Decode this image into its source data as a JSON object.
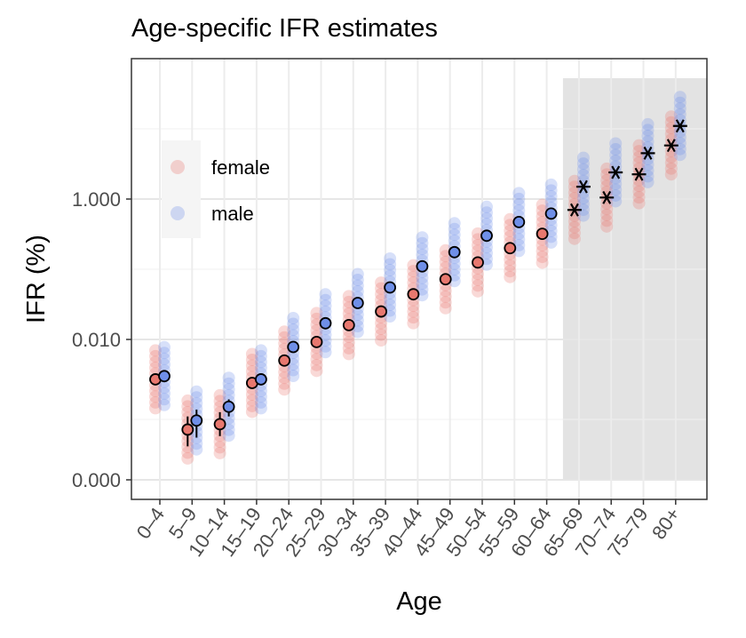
{
  "chart_data": {
    "type": "scatter",
    "title": "Age-specific IFR estimates",
    "xlabel": "Age",
    "ylabel": "IFR (%)",
    "y_scale": "log",
    "y_ticks": [
      "0.000",
      "0.010",
      "1.000"
    ],
    "categories": [
      "0–4",
      "5–9",
      "10–14",
      "15–19",
      "20–24",
      "25–29",
      "30–34",
      "35–39",
      "40–44",
      "45–49",
      "50–54",
      "55–59",
      "60–64",
      "65–69",
      "70–74",
      "75–79",
      "80+"
    ],
    "legend": {
      "position": "top-left",
      "entries": [
        "female",
        "male"
      ]
    },
    "shaded_region_from": "65–69",
    "grid": true,
    "series": [
      {
        "name": "female",
        "color": "#e8786f",
        "point_estimates": [
          0.0027,
          0.00052,
          0.00062,
          0.0024,
          0.005,
          0.0092,
          0.016,
          0.025,
          0.044,
          0.072,
          0.125,
          0.2,
          0.32,
          0.7,
          1.05,
          2.25,
          5.8
        ],
        "interval_low": [
          null,
          0.0003,
          0.00042,
          null,
          null,
          null,
          null,
          null,
          null,
          null,
          null,
          null,
          null,
          null,
          null,
          null,
          null
        ],
        "interval_high": [
          null,
          0.0008,
          0.00092,
          null,
          null,
          null,
          null,
          null,
          null,
          null,
          null,
          null,
          null,
          null,
          null,
          null,
          null
        ],
        "marker_from_65": "asterisk"
      },
      {
        "name": "male",
        "color": "#6f8fe8",
        "point_estimates": [
          0.003,
          0.0007,
          0.0011,
          0.0027,
          0.0078,
          0.017,
          0.033,
          0.055,
          0.11,
          0.175,
          0.3,
          0.47,
          0.62,
          1.5,
          2.4,
          4.5,
          11.0
        ],
        "interval_low": [
          null,
          0.0004,
          0.0008,
          null,
          null,
          null,
          null,
          null,
          null,
          null,
          null,
          null,
          null,
          null,
          null,
          null,
          null
        ],
        "interval_high": [
          null,
          0.001,
          0.0014,
          null,
          null,
          null,
          null,
          null,
          null,
          null,
          null,
          null,
          null,
          null,
          null,
          null,
          null
        ],
        "marker_from_65": "asterisk"
      }
    ]
  }
}
